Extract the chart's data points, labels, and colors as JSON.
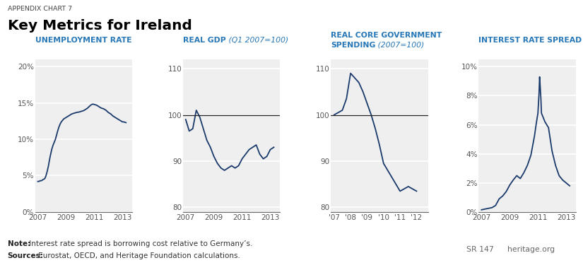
{
  "title_top": "APPENDIX CHART 7",
  "title_main": "Key Metrics for Ireland",
  "note_bold": "Note:",
  "note_text": " Interest rate spread is borrowing cost relative to Germany’s.",
  "sources_bold": "Sources:",
  "sources_text": " Eurostat, OECD, and Heritage Foundation calculations.",
  "sr_label": "SR 147",
  "heritage_label": "heritage.org",
  "bg_color": "#efefef",
  "line_color": "#1a3a6b",
  "ref_line_color": "#222222",
  "title_color": "#2878b8",
  "panels": [
    {
      "title_bold": "UNEMPLOYMENT RATE",
      "title_italic": "",
      "title_line2_bold": "",
      "title_line2_italic": "",
      "ytick_labels": [
        "0%",
        "5%",
        "10%",
        "15%",
        "20%"
      ],
      "ytick_vals": [
        0,
        5,
        10,
        15,
        20
      ],
      "ylim": [
        0,
        21
      ],
      "xlim": [
        2006.8,
        2013.7
      ],
      "xticks": [
        2007,
        2009,
        2011,
        2013
      ],
      "xtick_labels": [
        "2007",
        "2009",
        "2011",
        "2013"
      ],
      "ref_line": null,
      "x": [
        2007.0,
        2007.083,
        2007.167,
        2007.25,
        2007.333,
        2007.417,
        2007.5,
        2007.583,
        2007.667,
        2007.75,
        2007.833,
        2007.917,
        2008.0,
        2008.083,
        2008.167,
        2008.25,
        2008.333,
        2008.417,
        2008.5,
        2008.583,
        2008.667,
        2008.75,
        2008.833,
        2008.917,
        2009.0,
        2009.083,
        2009.167,
        2009.25,
        2009.333,
        2009.417,
        2009.5,
        2009.583,
        2009.667,
        2009.75,
        2009.833,
        2009.917,
        2010.0,
        2010.083,
        2010.167,
        2010.25,
        2010.333,
        2010.417,
        2010.5,
        2010.583,
        2010.667,
        2010.75,
        2010.833,
        2010.917,
        2011.0,
        2011.083,
        2011.167,
        2011.25,
        2011.333,
        2011.417,
        2011.5,
        2011.583,
        2011.667,
        2011.75,
        2011.833,
        2011.917,
        2012.0,
        2012.083,
        2012.167,
        2012.25,
        2012.333,
        2012.417,
        2012.5,
        2012.583,
        2012.667,
        2012.75,
        2012.833,
        2012.917,
        2013.0,
        2013.083,
        2013.167,
        2013.25
      ],
      "y": [
        4.2,
        4.2,
        4.3,
        4.3,
        4.4,
        4.5,
        4.6,
        5.0,
        5.6,
        6.3,
        7.2,
        8.0,
        8.7,
        9.2,
        9.6,
        10.0,
        10.6,
        11.2,
        11.7,
        12.1,
        12.4,
        12.6,
        12.8,
        12.9,
        13.0,
        13.1,
        13.2,
        13.3,
        13.4,
        13.5,
        13.55,
        13.6,
        13.65,
        13.7,
        13.73,
        13.75,
        13.8,
        13.85,
        13.9,
        13.95,
        14.05,
        14.15,
        14.25,
        14.4,
        14.55,
        14.7,
        14.8,
        14.85,
        14.8,
        14.75,
        14.7,
        14.6,
        14.5,
        14.4,
        14.3,
        14.25,
        14.2,
        14.1,
        14.0,
        13.85,
        13.7,
        13.6,
        13.5,
        13.35,
        13.2,
        13.1,
        13.0,
        12.9,
        12.8,
        12.7,
        12.6,
        12.5,
        12.4,
        12.4,
        12.35,
        12.3
      ]
    },
    {
      "title_bold": "REAL GDP",
      "title_italic": " (Q1 2007=100)",
      "title_line2_bold": "",
      "title_line2_italic": "",
      "ytick_labels": [
        "80",
        "90",
        "100",
        "110"
      ],
      "ytick_vals": [
        80,
        90,
        100,
        110
      ],
      "ylim": [
        79,
        112
      ],
      "xlim": [
        2006.8,
        2013.7
      ],
      "xticks": [
        2007,
        2009,
        2011,
        2013
      ],
      "xtick_labels": [
        "2007",
        "2009",
        "2011",
        "2013"
      ],
      "ref_line": 100,
      "x": [
        2007.0,
        2007.25,
        2007.5,
        2007.75,
        2008.0,
        2008.25,
        2008.5,
        2008.75,
        2009.0,
        2009.25,
        2009.5,
        2009.75,
        2010.0,
        2010.25,
        2010.5,
        2010.75,
        2011.0,
        2011.25,
        2011.5,
        2011.75,
        2012.0,
        2012.25,
        2012.5,
        2012.75,
        2013.0,
        2013.25
      ],
      "y": [
        99.0,
        96.5,
        97.0,
        101.0,
        99.5,
        97.0,
        94.5,
        93.0,
        91.0,
        89.5,
        88.5,
        88.0,
        88.5,
        89.0,
        88.5,
        89.0,
        90.5,
        91.5,
        92.5,
        93.0,
        93.5,
        91.5,
        90.5,
        91.0,
        92.5,
        93.0
      ]
    },
    {
      "title_bold": "REAL CORE GOVERNMENT",
      "title_italic": "",
      "title_line2_bold": "SPENDING",
      "title_line2_italic": " (2007=100)",
      "ytick_labels": [
        "80",
        "90",
        "100",
        "110"
      ],
      "ytick_vals": [
        80,
        90,
        100,
        110
      ],
      "ylim": [
        79,
        112
      ],
      "xlim": [
        2006.8,
        2012.7
      ],
      "xticks": [
        2007,
        2008,
        2009,
        2010,
        2011,
        2012
      ],
      "xtick_labels": [
        "'07",
        "'08",
        "'09",
        "'10",
        "'11",
        "'12"
      ],
      "ref_line": 100,
      "x": [
        2007.0,
        2007.25,
        2007.5,
        2007.75,
        2008.0,
        2008.25,
        2008.5,
        2008.75,
        2009.0,
        2009.25,
        2009.5,
        2009.75,
        2010.0,
        2010.5,
        2011.0,
        2011.5,
        2012.0
      ],
      "y": [
        100.0,
        100.5,
        101.0,
        103.5,
        109.0,
        108.0,
        107.0,
        105.0,
        102.5,
        100.0,
        97.0,
        93.5,
        89.5,
        86.5,
        83.5,
        84.5,
        83.5
      ]
    },
    {
      "title_bold": "INTEREST RATE SPREAD",
      "title_italic": "",
      "title_line2_bold": "",
      "title_line2_italic": "",
      "ytick_labels": [
        "0%",
        "2%",
        "4%",
        "6%",
        "8%",
        "10%"
      ],
      "ytick_vals": [
        0,
        2,
        4,
        6,
        8,
        10
      ],
      "ylim": [
        0,
        10.5
      ],
      "xlim": [
        2006.8,
        2013.7
      ],
      "xticks": [
        2007,
        2009,
        2011,
        2013
      ],
      "xtick_labels": [
        "2007",
        "2009",
        "2011",
        "2013"
      ],
      "ref_line": null,
      "x": [
        2007.0,
        2007.25,
        2007.5,
        2007.75,
        2008.0,
        2008.25,
        2008.5,
        2008.75,
        2009.0,
        2009.25,
        2009.5,
        2009.75,
        2010.0,
        2010.25,
        2010.5,
        2010.75,
        2010.9,
        2011.0,
        2011.08,
        2011.12,
        2011.17,
        2011.21,
        2011.25,
        2011.5,
        2011.75,
        2012.0,
        2012.25,
        2012.5,
        2012.75,
        2013.0,
        2013.25
      ],
      "y": [
        0.15,
        0.2,
        0.25,
        0.3,
        0.45,
        0.9,
        1.1,
        1.4,
        1.85,
        2.2,
        2.5,
        2.3,
        2.7,
        3.2,
        3.9,
        5.2,
        6.2,
        6.8,
        8.2,
        9.3,
        8.5,
        7.8,
        6.8,
        6.2,
        5.8,
        4.2,
        3.2,
        2.5,
        2.2,
        2.0,
        1.8
      ]
    }
  ]
}
